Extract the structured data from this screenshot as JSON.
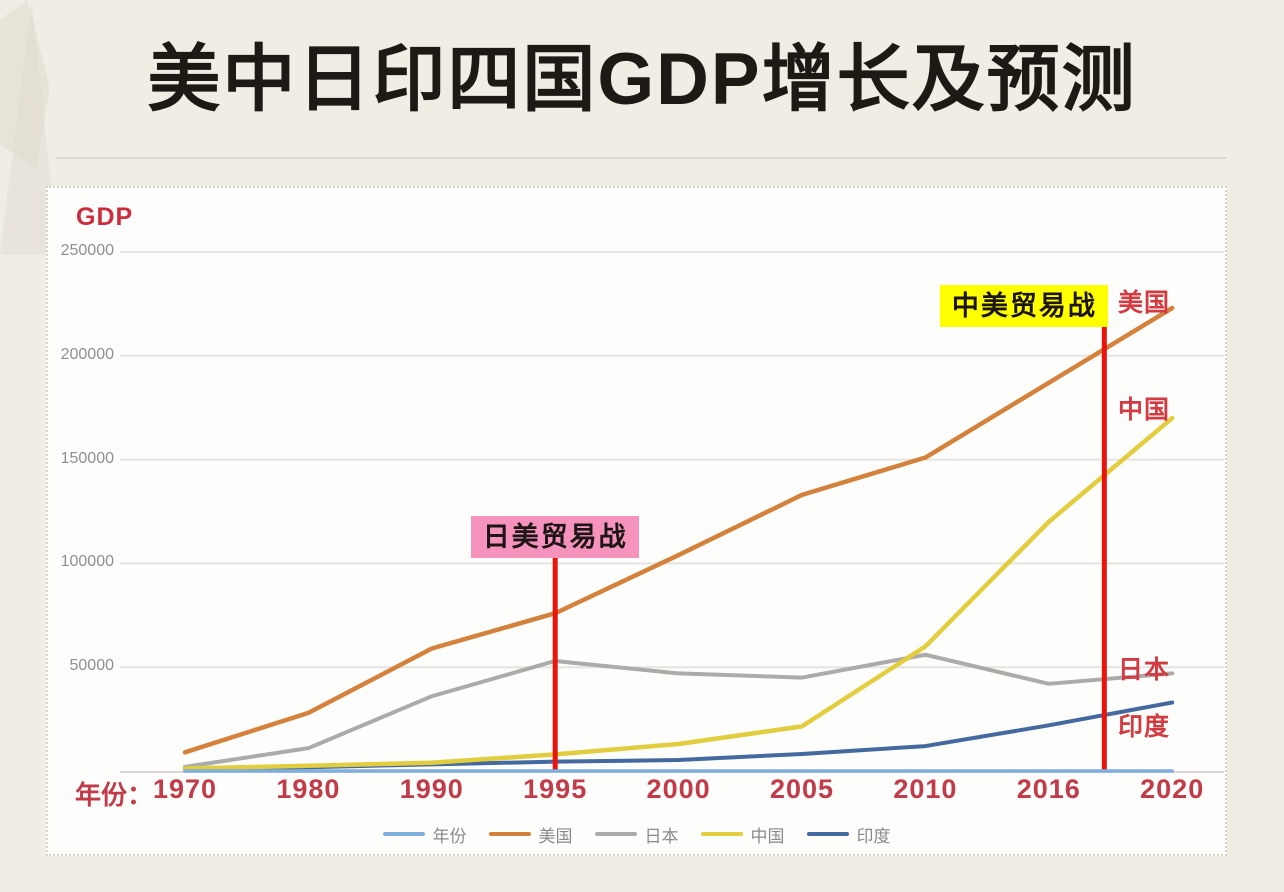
{
  "chart_data": {
    "type": "line",
    "title": "美中日印四国GDP增长及预测",
    "y_axis_label": "GDP",
    "x_prefix_label": "年份：",
    "categories": [
      "1970",
      "1980",
      "1990",
      "1995",
      "2000",
      "2005",
      "2010",
      "2016",
      "2020"
    ],
    "ylim": [
      0,
      250000
    ],
    "yticks": [
      250000,
      200000,
      150000,
      100000,
      50000
    ],
    "grid": true,
    "legend_position": "bottom",
    "series": [
      {
        "name": "年份",
        "key": "year",
        "color": "#7fb0dd",
        "width": 3.5,
        "values": [
          0,
          0,
          0,
          0,
          0,
          0,
          0,
          0,
          0
        ]
      },
      {
        "name": "美国",
        "key": "usa",
        "color": "#d4813c",
        "width": 4.5,
        "end_label_dy": -10,
        "values": [
          9000,
          28000,
          59000,
          76000,
          104000,
          133000,
          151000,
          187000,
          223000
        ]
      },
      {
        "name": "日本",
        "key": "japan",
        "color": "#ababab",
        "width": 4,
        "end_label_dy": -8,
        "values": [
          2000,
          11000,
          36000,
          53000,
          47000,
          45000,
          56000,
          42000,
          47000
        ]
      },
      {
        "name": "中国",
        "key": "china",
        "color": "#e2cd3e",
        "width": 4.5,
        "end_label_dy": -13,
        "values": [
          1200,
          2500,
          4000,
          8000,
          13000,
          21500,
          60000,
          120000,
          170000
        ]
      },
      {
        "name": "印度",
        "key": "india",
        "color": "#44699f",
        "width": 4,
        "end_label_dy": 20,
        "values": [
          800,
          1800,
          3200,
          4500,
          5300,
          8200,
          12000,
          22000,
          33000
        ]
      }
    ],
    "annotations": [
      {
        "label": "日美贸易战",
        "bg": "#f593bd",
        "x_index": 3,
        "top_value": 102600,
        "align": "center"
      },
      {
        "label": "中美贸易战",
        "bg": "#ffff00",
        "x_index": 7.45,
        "top_value": 213900,
        "align": "right"
      }
    ],
    "colors": {
      "title": "#1d1a15",
      "gdp": "#cb2c3e",
      "axis_label": "#c13b49",
      "y_tick": "#8f8f8f",
      "end_label": "#d23b41",
      "legend_text": "#8a8a8a",
      "grid": "#e5e4e1",
      "baseline": "#d8d7d4",
      "vline": "#e8150f",
      "annotation_text": "#1d1416"
    }
  }
}
